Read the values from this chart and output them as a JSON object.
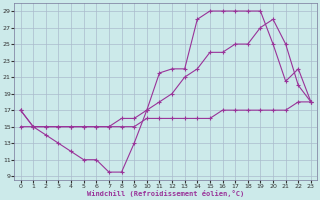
{
  "background_color": "#cceaea",
  "grid_color": "#aabbcc",
  "line_color": "#993399",
  "xlabel": "Windchill (Refroidissement éolien,°C)",
  "xlim": [
    -0.5,
    23.5
  ],
  "ylim": [
    8.5,
    30
  ],
  "yticks": [
    9,
    11,
    13,
    15,
    17,
    19,
    21,
    23,
    25,
    27,
    29
  ],
  "xticks": [
    0,
    1,
    2,
    3,
    4,
    5,
    6,
    7,
    8,
    9,
    10,
    11,
    12,
    13,
    14,
    15,
    16,
    17,
    18,
    19,
    20,
    21,
    22,
    23
  ],
  "series1": {
    "x": [
      0,
      1,
      2,
      3,
      4,
      5,
      6,
      7,
      8,
      9,
      10,
      11,
      12,
      13,
      14,
      15,
      16,
      17,
      18,
      19,
      20,
      21,
      22,
      23
    ],
    "y": [
      17,
      15,
      14,
      13,
      12,
      11,
      11,
      9.5,
      9.5,
      13,
      17,
      21.5,
      22,
      22,
      28,
      29,
      29,
      29,
      29,
      29,
      25,
      20.5,
      22,
      18
    ]
  },
  "series2": {
    "x": [
      0,
      1,
      2,
      3,
      4,
      5,
      6,
      7,
      8,
      9,
      10,
      11,
      12,
      13,
      14,
      15,
      16,
      17,
      18,
      19,
      20,
      21,
      22,
      23
    ],
    "y": [
      15,
      15,
      15,
      15,
      15,
      15,
      15,
      15,
      15,
      15,
      16,
      16,
      16,
      16,
      16,
      16,
      17,
      17,
      17,
      17,
      17,
      17,
      18,
      18
    ]
  },
  "series3": {
    "x": [
      0,
      1,
      2,
      3,
      4,
      5,
      6,
      7,
      8,
      9,
      10,
      11,
      12,
      13,
      14,
      15,
      16,
      17,
      18,
      19,
      20,
      21,
      22,
      23
    ],
    "y": [
      17,
      15,
      15,
      15,
      15,
      15,
      15,
      15,
      16,
      16,
      17,
      18,
      19,
      21,
      22,
      24,
      24,
      25,
      25,
      27,
      28,
      25,
      20,
      18
    ]
  }
}
